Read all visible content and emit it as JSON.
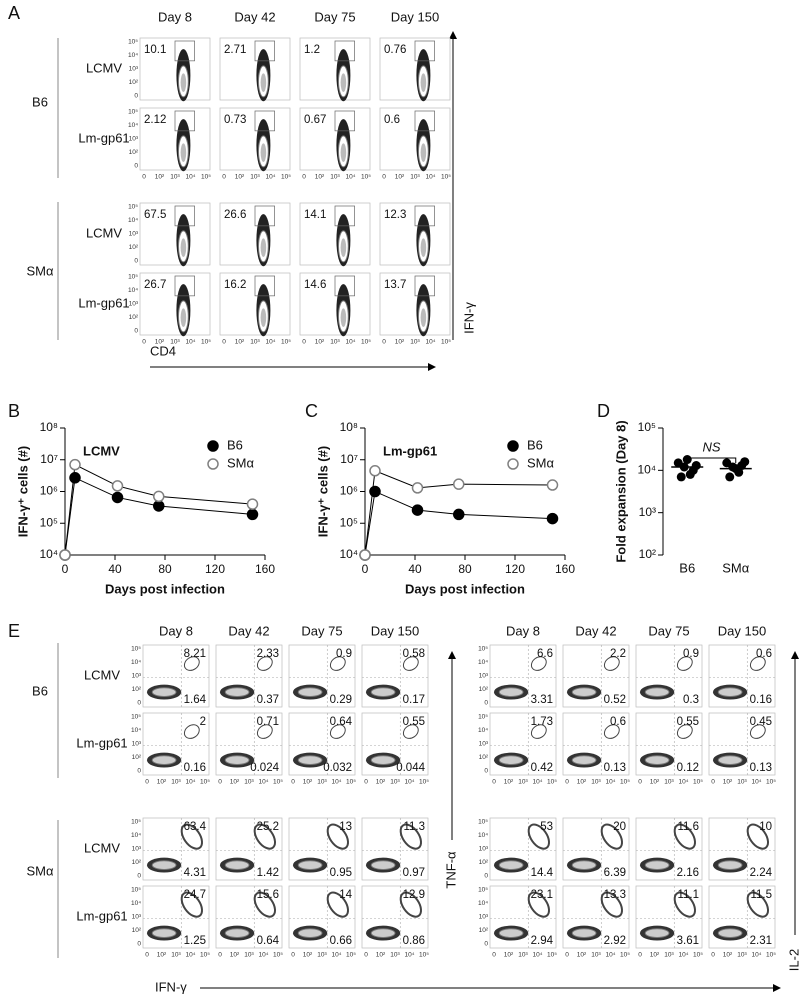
{
  "panel_labels": [
    "A",
    "B",
    "C",
    "D",
    "E"
  ],
  "flow_A": {
    "columns": [
      "Day 8",
      "Day 42",
      "Day 75",
      "Day 150"
    ],
    "axis_ticks": [
      "0",
      "10²",
      "10³",
      "10⁴",
      "10⁵"
    ],
    "x_label": "CD4",
    "y_label": "IFN-γ",
    "groups": [
      {
        "name": "B6",
        "rows": [
          {
            "name": "LCMV",
            "values": [
              10.1,
              2.71,
              1.2,
              0.76
            ]
          },
          {
            "name": "Lm-gp61",
            "values": [
              2.12,
              0.73,
              0.67,
              0.6
            ]
          }
        ]
      },
      {
        "name": "SMα",
        "rows": [
          {
            "name": "LCMV",
            "values": [
              67.5,
              26.6,
              14.1,
              12.3
            ]
          },
          {
            "name": "Lm-gp61",
            "values": [
              26.7,
              16.2,
              14.6,
              13.7
            ]
          }
        ]
      }
    ]
  },
  "chart_data": [
    {
      "type": "line",
      "annotation": "LCMV",
      "x_label": "Days post infection",
      "y_label": "IFN-γ⁺ cells (#)",
      "x": [
        0,
        8,
        42,
        75,
        150
      ],
      "xlim": [
        0,
        160
      ],
      "xticks": [
        0,
        40,
        80,
        120,
        160
      ],
      "log_y": true,
      "ylim": [
        10000,
        100000000
      ],
      "yticks": [
        {
          "value": 10000,
          "label": "10⁴"
        },
        {
          "value": 100000,
          "label": "10⁵"
        },
        {
          "value": 1000000,
          "label": "10⁶"
        },
        {
          "value": 10000000,
          "label": "10⁷"
        },
        {
          "value": 100000000,
          "label": "10⁸"
        }
      ],
      "legend": "upper right",
      "series": [
        {
          "name": "B6",
          "color": "#000000",
          "fill": "#000000",
          "values": [
            10000,
            2700000,
            650000,
            350000,
            190000
          ]
        },
        {
          "name": "SMα",
          "color": "#808080",
          "fill": "#ffffff",
          "values": [
            10000,
            7000000,
            1500000,
            700000,
            400000
          ]
        }
      ]
    },
    {
      "type": "line",
      "annotation": "Lm-gp61",
      "x_label": "Days post infection",
      "y_label": "IFN-γ⁺ cells (#)",
      "x": [
        0,
        8,
        42,
        75,
        150
      ],
      "xlim": [
        0,
        160
      ],
      "xticks": [
        0,
        40,
        80,
        120,
        160
      ],
      "log_y": true,
      "ylim": [
        10000,
        100000000
      ],
      "yticks": [
        {
          "value": 10000,
          "label": "10⁴"
        },
        {
          "value": 100000,
          "label": "10⁵"
        },
        {
          "value": 1000000,
          "label": "10⁶"
        },
        {
          "value": 10000000,
          "label": "10⁷"
        },
        {
          "value": 100000000,
          "label": "10⁸"
        }
      ],
      "legend": "upper right",
      "series": [
        {
          "name": "B6",
          "color": "#000000",
          "fill": "#000000",
          "values": [
            10000,
            1000000,
            260000,
            190000,
            140000
          ]
        },
        {
          "name": "SMα",
          "color": "#808080",
          "fill": "#ffffff",
          "values": [
            10000,
            4500000,
            1300000,
            1700000,
            1600000
          ]
        }
      ]
    },
    {
      "type": "strip",
      "annotation": "NS",
      "y_label": "Fold expansion (Day 8)",
      "categories": [
        "B6",
        "SMα"
      ],
      "color": "#000000",
      "log_y": true,
      "ylim": [
        100,
        100000
      ],
      "yticks": [
        {
          "value": 100,
          "label": "10²"
        },
        {
          "value": 1000,
          "label": "10³"
        },
        {
          "value": 10000,
          "label": "10⁴"
        },
        {
          "value": 100000,
          "label": "10⁵"
        }
      ],
      "values": [
        [
          15000,
          12000,
          8000,
          13000,
          7000,
          18000,
          10000
        ],
        [
          15000,
          12000,
          9000,
          16000,
          7000,
          11000,
          13000
        ]
      ],
      "means": [
        12000,
        11000
      ]
    }
  ],
  "flow_E": {
    "columns": [
      "Day 8",
      "Day 42",
      "Day 75",
      "Day 150"
    ],
    "axis_ticks": [
      "0",
      "10²",
      "10³",
      "10⁴",
      "10⁵"
    ],
    "x_label": "IFN-γ",
    "group_names": [
      "B6",
      "SMα"
    ],
    "row_names": [
      "LCMV",
      "Lm-gp61"
    ],
    "panels": [
      {
        "y_label": "TNF-α",
        "groups": [
          [
            [
              [
                8.21,
                1.64
              ],
              [
                2.33,
                0.37
              ],
              [
                0.9,
                0.29
              ],
              [
                0.58,
                0.17
              ]
            ],
            [
              [
                2,
                0.16
              ],
              [
                0.71,
                0.024
              ],
              [
                0.64,
                0.032
              ],
              [
                0.55,
                0.044
              ]
            ]
          ],
          [
            [
              [
                63.4,
                4.31
              ],
              [
                25.2,
                1.42
              ],
              [
                13,
                0.95
              ],
              [
                11.3,
                0.97
              ]
            ],
            [
              [
                24.7,
                1.25
              ],
              [
                15.6,
                0.64
              ],
              [
                14,
                0.66
              ],
              [
                12.9,
                0.86
              ]
            ]
          ]
        ]
      },
      {
        "y_label": "IL-2",
        "groups": [
          [
            [
              [
                6.6,
                3.31
              ],
              [
                2.2,
                0.52
              ],
              [
                0.9,
                0.3
              ],
              [
                0.6,
                0.16
              ]
            ],
            [
              [
                1.73,
                0.42
              ],
              [
                0.6,
                0.13
              ],
              [
                0.55,
                0.12
              ],
              [
                0.45,
                0.13
              ]
            ]
          ],
          [
            [
              [
                53,
                14.4
              ],
              [
                20,
                6.39
              ],
              [
                11.6,
                2.16
              ],
              [
                10,
                2.24
              ]
            ],
            [
              [
                23.1,
                2.94
              ],
              [
                13.3,
                2.92
              ],
              [
                11.1,
                3.61
              ],
              [
                11.5,
                2.31
              ]
            ]
          ]
        ]
      }
    ]
  }
}
